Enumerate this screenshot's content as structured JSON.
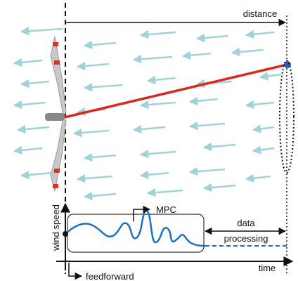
{
  "labels": {
    "distance": "distance",
    "wind_speed": "wind speed",
    "mpc": "MPC",
    "data": "data",
    "processing": "processing",
    "time": "time",
    "feedforward": "feedforward"
  }
}
